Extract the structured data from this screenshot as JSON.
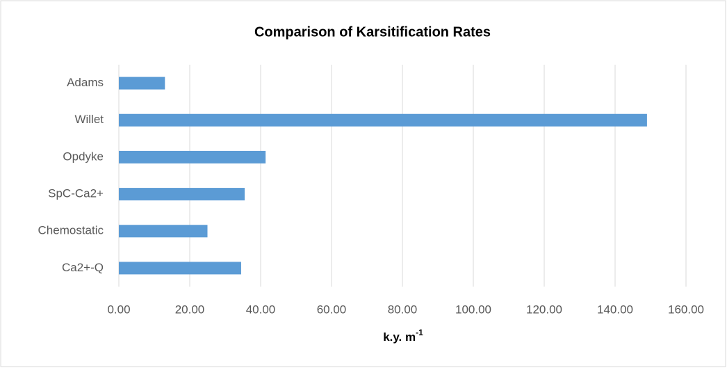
{
  "chart_data": {
    "type": "hbar",
    "title": "Comparison of Karsitification Rates",
    "x_label": {
      "text": "k.y. m",
      "superscript": "-1"
    },
    "categories": [
      "Adams",
      "Willet",
      "Opdyke",
      "SpC-Ca2+",
      "Chemostatic",
      "Ca2+-Q"
    ],
    "values": [
      13,
      149,
      41.4,
      35.5,
      25,
      34.5
    ],
    "color": "#5b9bd5",
    "xlim": [
      0,
      160
    ],
    "xticks": [
      {
        "value": 0,
        "label": "0.00"
      },
      {
        "value": 20,
        "label": "20.00"
      },
      {
        "value": 40,
        "label": "40.00"
      },
      {
        "value": 60,
        "label": "60.00"
      },
      {
        "value": 80,
        "label": "80.00"
      },
      {
        "value": 100,
        "label": "100.00"
      },
      {
        "value": 120,
        "label": "120.00"
      },
      {
        "value": 140,
        "label": "140.00"
      },
      {
        "value": 160,
        "label": "160.00"
      }
    ],
    "grid": true
  }
}
